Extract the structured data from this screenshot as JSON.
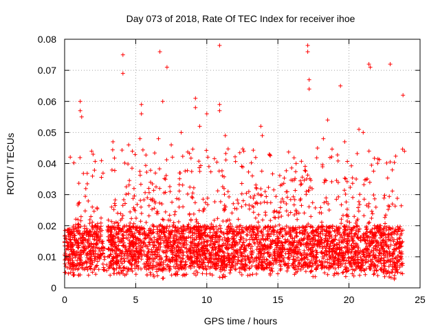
{
  "chart_data": {
    "type": "scatter",
    "title": "Day 073 of 2018, Rate Of TEC Index for receiver ihoe",
    "xlabel": "GPS time / hours",
    "ylabel": "ROTI / TECUs",
    "xlim": [
      0,
      25
    ],
    "ylim": [
      0,
      0.08
    ],
    "x_ticks": [
      0,
      5,
      10,
      15,
      20,
      25
    ],
    "x_tick_labels": [
      "0",
      "5",
      "10",
      "15",
      "20",
      "25"
    ],
    "y_ticks": [
      0,
      0.01,
      0.02,
      0.03,
      0.04,
      0.05,
      0.06,
      0.07,
      0.08
    ],
    "y_tick_labels": [
      "0",
      "0.01",
      "0.02",
      "0.03",
      "0.04",
      "0.05",
      "0.06",
      "0.07",
      "0.08"
    ],
    "grid": true,
    "marker": "+",
    "marker_color": "#ff0000",
    "series": [
      {
        "name": "ROTI",
        "points_estimated_outliers": [
          [
            4.1,
            0.075
          ],
          [
            4.1,
            0.069
          ],
          [
            6.7,
            0.076
          ],
          [
            7.2,
            0.071
          ],
          [
            10.9,
            0.078
          ],
          [
            17.1,
            0.078
          ],
          [
            17.1,
            0.076
          ],
          [
            17.2,
            0.067
          ],
          [
            17.2,
            0.064
          ],
          [
            19.4,
            0.065
          ],
          [
            21.4,
            0.072
          ],
          [
            21.5,
            0.071
          ],
          [
            22.9,
            0.072
          ],
          [
            23.8,
            0.062
          ],
          [
            1.1,
            0.06
          ],
          [
            1.1,
            0.057
          ],
          [
            5.4,
            0.059
          ],
          [
            5.4,
            0.056
          ],
          [
            6.9,
            0.06
          ],
          [
            9.2,
            0.061
          ],
          [
            9.2,
            0.058
          ],
          [
            10.0,
            0.056
          ],
          [
            10.9,
            0.059
          ],
          [
            10.9,
            0.057
          ],
          [
            1.2,
            0.055
          ],
          [
            13.8,
            0.052
          ],
          [
            13.9,
            0.049
          ],
          [
            18.5,
            0.054
          ],
          [
            20.7,
            0.051
          ],
          [
            21.0,
            0.05
          ],
          [
            3.4,
            0.047
          ],
          [
            5.3,
            0.048
          ],
          [
            6.6,
            0.048
          ],
          [
            8.2,
            0.05
          ],
          [
            9.5,
            0.052
          ],
          [
            11.3,
            0.049
          ],
          [
            12.6,
            0.044
          ],
          [
            14.4,
            0.043
          ],
          [
            18.2,
            0.048
          ],
          [
            19.7,
            0.047
          ],
          [
            23.9,
            0.044
          ],
          [
            1.9,
            0.044
          ],
          [
            2.0,
            0.043
          ],
          [
            4.5,
            0.046
          ],
          [
            7.5,
            0.046
          ]
        ],
        "density_envelope_estimated": {
          "x": [
            0.0,
            0.5,
            1.0,
            1.5,
            2.0,
            2.5,
            2.8,
            3.2,
            3.5,
            4.0,
            4.5,
            5.0,
            5.5,
            6.0,
            6.5,
            7.0,
            7.5,
            8.0,
            8.5,
            9.0,
            9.5,
            10.0,
            10.5,
            11.0,
            11.5,
            12.0,
            12.5,
            13.0,
            13.5,
            14.0,
            14.5,
            15.0,
            15.5,
            16.0,
            16.5,
            17.0,
            17.5,
            18.0,
            18.5,
            19.0,
            19.5,
            20.0,
            20.5,
            21.0,
            21.5,
            22.0,
            22.5,
            23.0,
            23.5,
            23.8
          ],
          "upper": [
            0.022,
            0.018,
            0.03,
            0.032,
            0.028,
            0.024,
            0.018,
            0.026,
            0.028,
            0.032,
            0.034,
            0.032,
            0.03,
            0.033,
            0.035,
            0.036,
            0.032,
            0.032,
            0.034,
            0.034,
            0.033,
            0.031,
            0.032,
            0.035,
            0.034,
            0.033,
            0.033,
            0.034,
            0.035,
            0.034,
            0.032,
            0.033,
            0.036,
            0.036,
            0.036,
            0.038,
            0.034,
            0.034,
            0.035,
            0.034,
            0.035,
            0.036,
            0.036,
            0.034,
            0.035,
            0.03,
            0.03,
            0.034,
            0.028,
            0.028
          ],
          "lower": [
            0.005,
            0.004,
            0.004,
            0.004,
            0.004,
            0.005,
            0.003,
            0.004,
            0.004,
            0.004,
            0.004,
            0.004,
            0.004,
            0.004,
            0.003,
            0.003,
            0.004,
            0.004,
            0.004,
            0.004,
            0.004,
            0.004,
            0.004,
            0.003,
            0.004,
            0.004,
            0.004,
            0.004,
            0.004,
            0.004,
            0.004,
            0.004,
            0.004,
            0.004,
            0.004,
            0.003,
            0.003,
            0.004,
            0.004,
            0.004,
            0.004,
            0.003,
            0.004,
            0.004,
            0.004,
            0.004,
            0.003,
            0.003,
            0.002,
            0.003
          ]
        }
      }
    ]
  }
}
